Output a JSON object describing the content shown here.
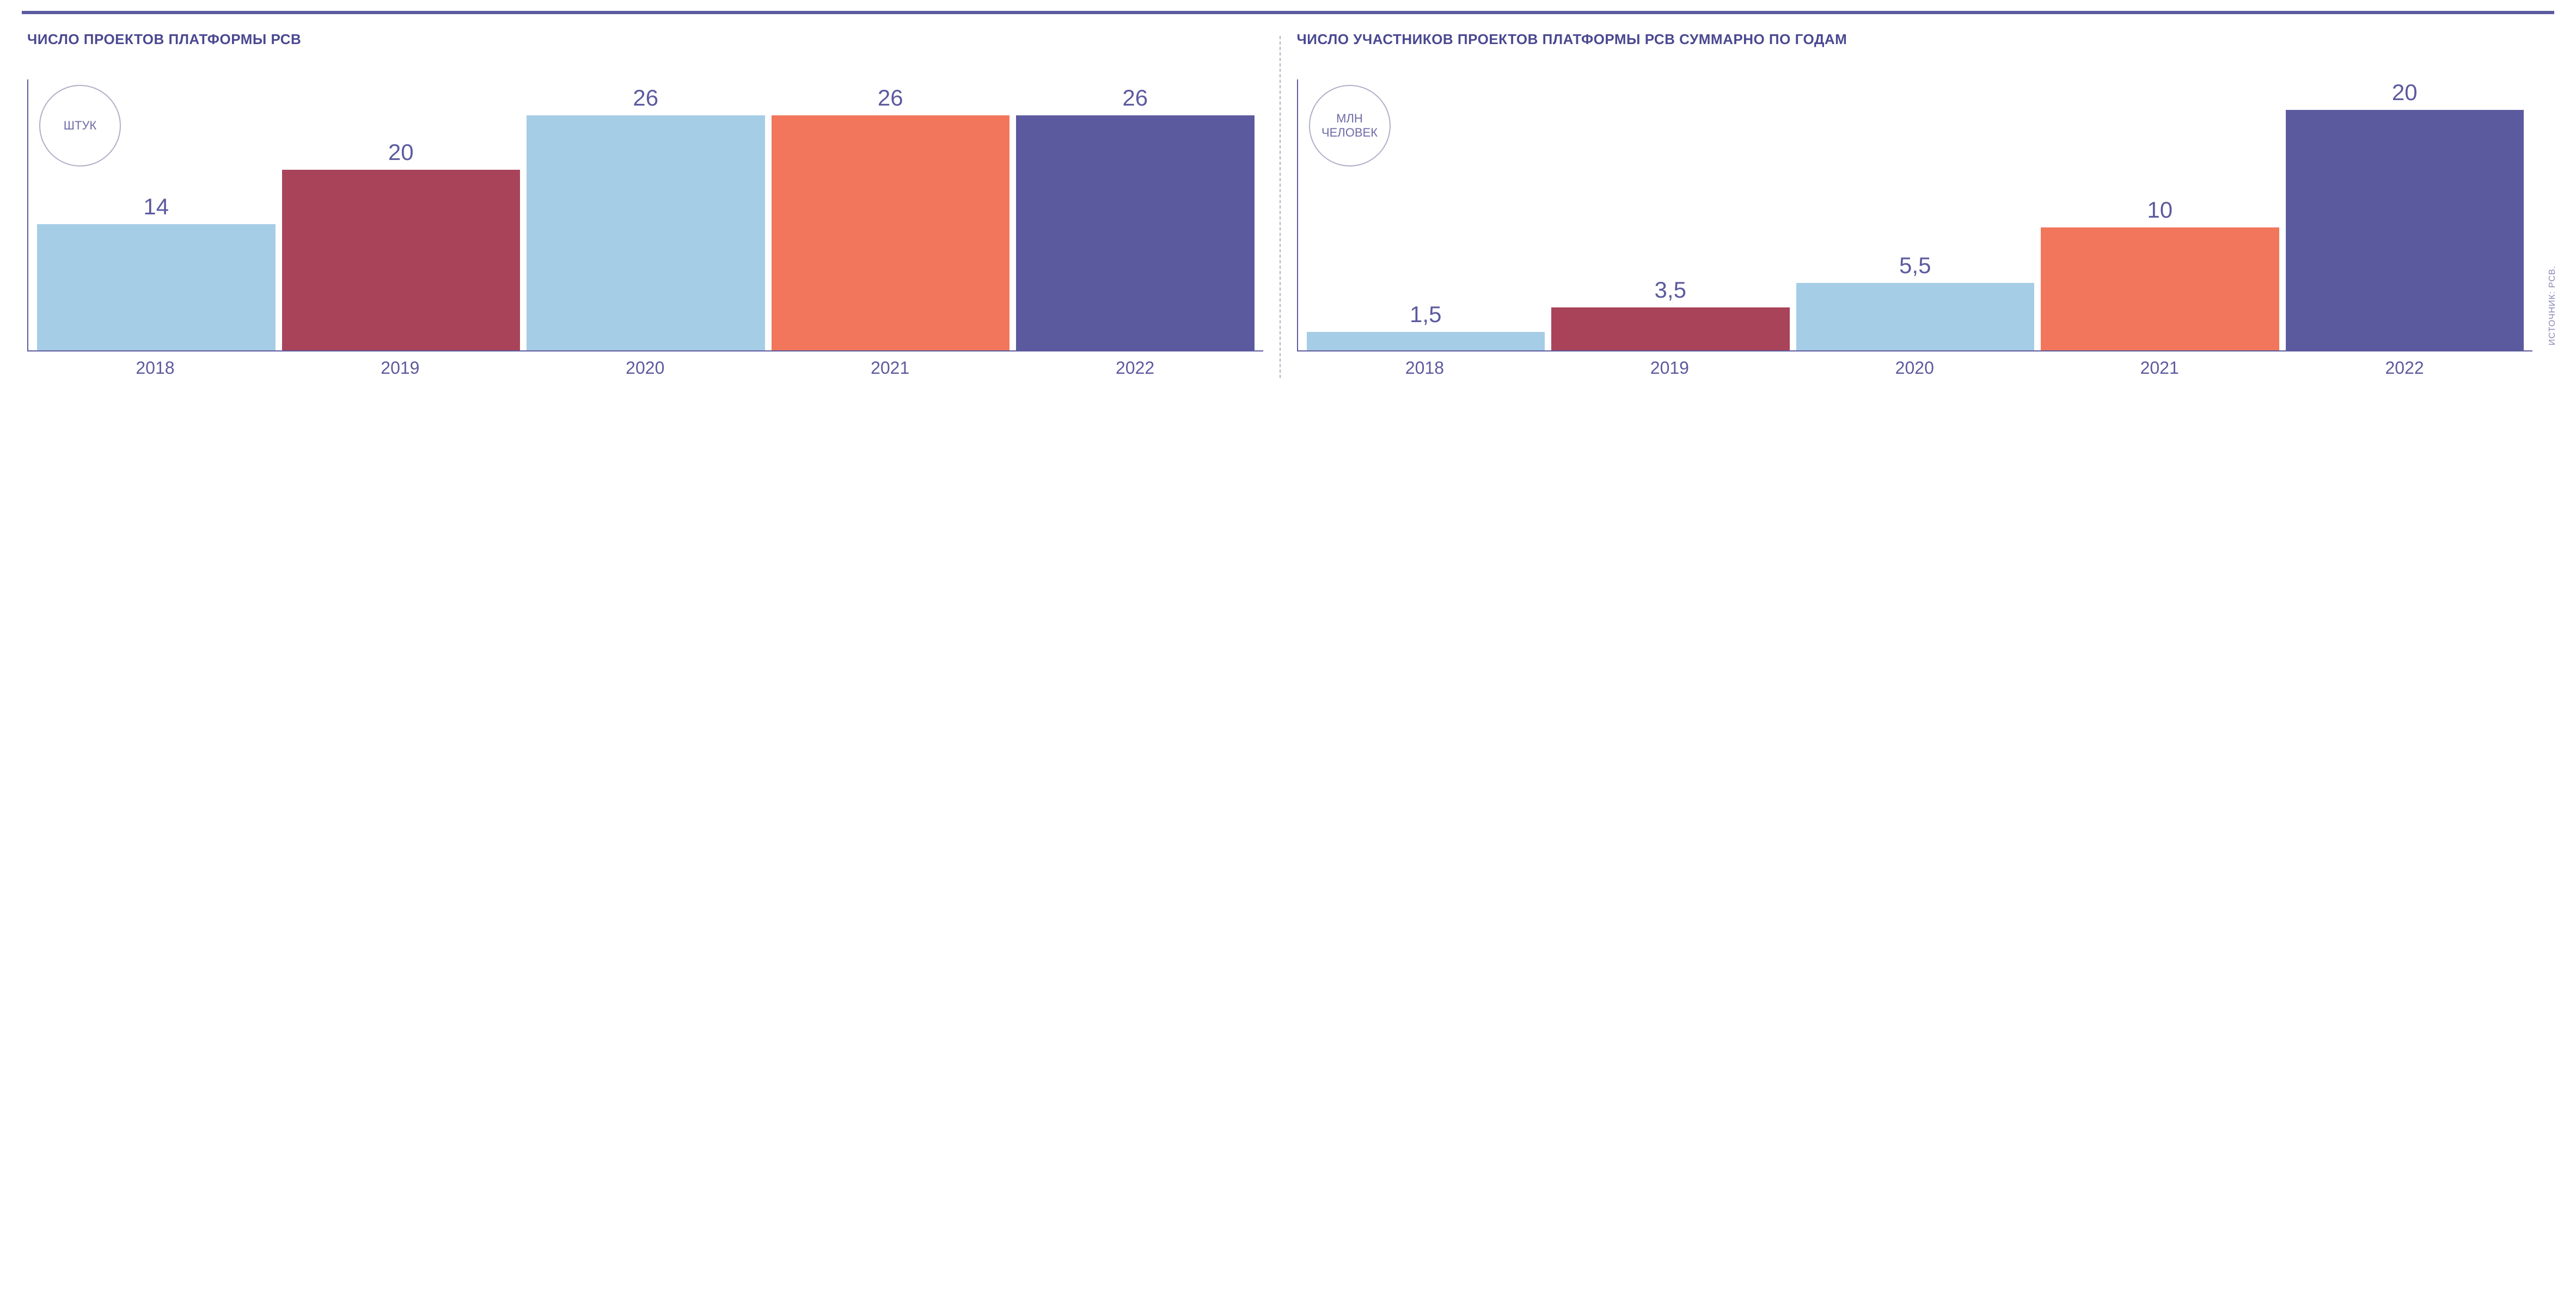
{
  "layout": {
    "top_rule_color": "#5c5a9e",
    "divider_color": "#b0afc8",
    "axis_color": "#5c5a9e",
    "background_color": "#ffffff",
    "title_color": "#4a4890",
    "title_fontsize": 26,
    "value_label_color": "#5c5a9e",
    "value_label_fontsize": 42,
    "xaxis_label_color": "#5c5a9e",
    "xaxis_label_fontsize": 32,
    "unit_badge_border_color": "#b0afc8",
    "unit_badge_text_color": "#6d6ba6",
    "unit_badge_fontsize": 22
  },
  "left_chart": {
    "type": "bar",
    "title": "ЧИСЛО ПРОЕКТОВ ПЛАТФОРМЫ РСВ",
    "unit_label": "ШТУК",
    "categories": [
      "2018",
      "2019",
      "2020",
      "2021",
      "2022"
    ],
    "values": [
      14,
      20,
      26,
      26,
      26
    ],
    "value_labels": [
      "14",
      "20",
      "26",
      "26",
      "26"
    ],
    "bar_colors": [
      "#a5cde6",
      "#a9435a",
      "#a5cde6",
      "#f1765b",
      "#5c5a9e"
    ],
    "ylim": [
      0,
      30
    ],
    "bar_width": 1.0
  },
  "right_chart": {
    "type": "bar",
    "title": "ЧИСЛО УЧАСТНИКОВ ПРОЕКТОВ ПЛАТФОРМЫ РСВ СУММАРНО ПО ГОДАМ",
    "unit_label": "МЛН ЧЕЛОВЕК",
    "categories": [
      "2018",
      "2019",
      "2020",
      "2021",
      "2022"
    ],
    "values": [
      1.5,
      3.5,
      5.5,
      10,
      20
    ],
    "value_labels": [
      "1,5",
      "3,5",
      "5,5",
      "10",
      "20"
    ],
    "bar_colors": [
      "#a5cde6",
      "#a9435a",
      "#a5cde6",
      "#f1765b",
      "#5c5a9e"
    ],
    "ylim": [
      0,
      22
    ],
    "bar_width": 1.0
  },
  "source_label": "ИСТОЧНИК: РСВ."
}
